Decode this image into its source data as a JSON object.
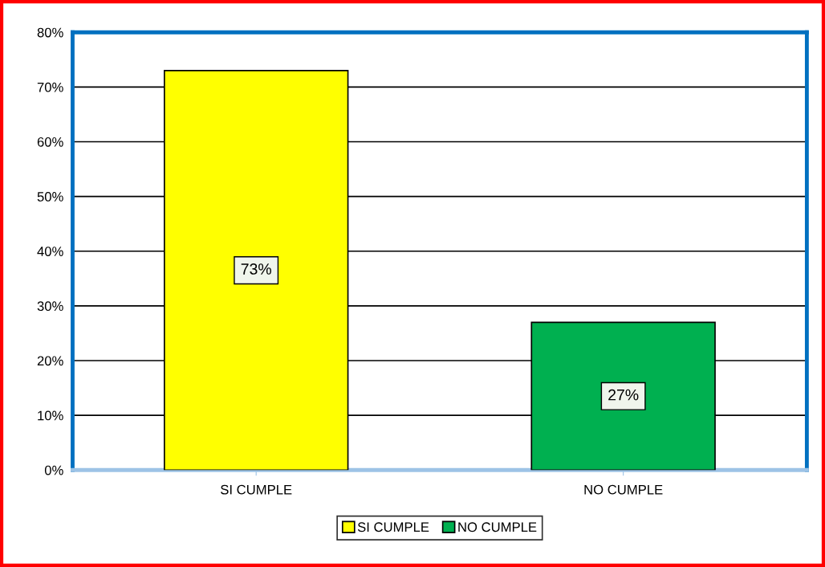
{
  "chart_data": {
    "type": "bar",
    "categories": [
      "SI CUMPLE",
      "NO CUMPLE"
    ],
    "series": [
      {
        "name": "SI CUMPLE",
        "color": "#ffff00",
        "values": [
          73,
          null
        ],
        "value_labels": [
          "73%",
          null
        ]
      },
      {
        "name": "NO CUMPLE",
        "color": "#00b050",
        "values": [
          null,
          27
        ],
        "value_labels": [
          null,
          "27%"
        ]
      }
    ],
    "ylim": [
      0,
      80
    ],
    "yticks": [
      {
        "value": 0,
        "label": "0%"
      },
      {
        "value": 10,
        "label": "10%"
      },
      {
        "value": 20,
        "label": "20%"
      },
      {
        "value": 30,
        "label": "30%"
      },
      {
        "value": 40,
        "label": "40%"
      },
      {
        "value": 50,
        "label": "50%"
      },
      {
        "value": 60,
        "label": "60%"
      },
      {
        "value": 70,
        "label": "70%"
      },
      {
        "value": 80,
        "label": "80%"
      }
    ],
    "grid": "y",
    "legend": "bottom"
  }
}
